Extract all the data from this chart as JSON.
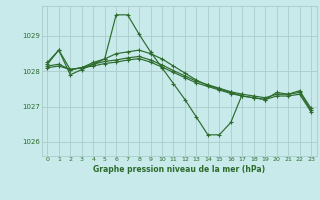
{
  "title": "Graphe pression niveau de la mer (hPa)",
  "bg_color": "#c8eaea",
  "grid_color": "#aacccc",
  "line_color": "#2d6b2d",
  "xlim": [
    -0.5,
    23.5
  ],
  "ylim": [
    1025.6,
    1029.85
  ],
  "yticks": [
    1026,
    1027,
    1028,
    1029
  ],
  "xticks": [
    0,
    1,
    2,
    3,
    4,
    5,
    6,
    7,
    8,
    9,
    10,
    11,
    12,
    13,
    14,
    15,
    16,
    17,
    18,
    19,
    20,
    21,
    22,
    23
  ],
  "series": [
    {
      "x": [
        0,
        1,
        2,
        3,
        4,
        5,
        6,
        7,
        8,
        9,
        10,
        11,
        12,
        13,
        14,
        15,
        16,
        17
      ],
      "y": [
        1028.25,
        1028.6,
        1027.9,
        1028.05,
        1028.2,
        1028.35,
        1029.6,
        1029.6,
        1029.05,
        1028.55,
        1028.1,
        1027.65,
        1027.2,
        1026.7,
        1026.2,
        1026.2,
        1026.55,
        1027.35
      ]
    },
    {
      "x": [
        0,
        1,
        2,
        3,
        4,
        5,
        6,
        7,
        8,
        9,
        10,
        11,
        12,
        13,
        14,
        15,
        16,
        17,
        18,
        19,
        20,
        21,
        22,
        23
      ],
      "y": [
        1028.2,
        1028.6,
        1028.05,
        1028.1,
        1028.25,
        1028.35,
        1028.5,
        1028.55,
        1028.6,
        1028.5,
        1028.35,
        1028.15,
        1027.95,
        1027.75,
        1027.6,
        1027.5,
        1027.4,
        1027.3,
        1027.25,
        1027.2,
        1027.4,
        1027.35,
        1027.45,
        1026.95
      ]
    },
    {
      "x": [
        0,
        1,
        2,
        3,
        4,
        5,
        6,
        7,
        8,
        9,
        10,
        11,
        12,
        13,
        14,
        15,
        16,
        17,
        18,
        19,
        20,
        21,
        22,
        23
      ],
      "y": [
        1028.15,
        1028.2,
        1028.05,
        1028.1,
        1028.2,
        1028.28,
        1028.32,
        1028.38,
        1028.42,
        1028.32,
        1028.18,
        1028.02,
        1027.87,
        1027.72,
        1027.62,
        1027.52,
        1027.42,
        1027.35,
        1027.3,
        1027.25,
        1027.35,
        1027.35,
        1027.4,
        1026.9
      ]
    },
    {
      "x": [
        0,
        1,
        2,
        3,
        4,
        5,
        6,
        7,
        8,
        9,
        10,
        11,
        12,
        13,
        14,
        15,
        16,
        17,
        18,
        19,
        20,
        21,
        22,
        23
      ],
      "y": [
        1028.1,
        1028.15,
        1028.05,
        1028.1,
        1028.15,
        1028.22,
        1028.26,
        1028.32,
        1028.36,
        1028.26,
        1028.12,
        1027.97,
        1027.82,
        1027.67,
        1027.57,
        1027.47,
        1027.37,
        1027.3,
        1027.25,
        1027.2,
        1027.3,
        1027.3,
        1027.35,
        1026.85
      ]
    }
  ]
}
